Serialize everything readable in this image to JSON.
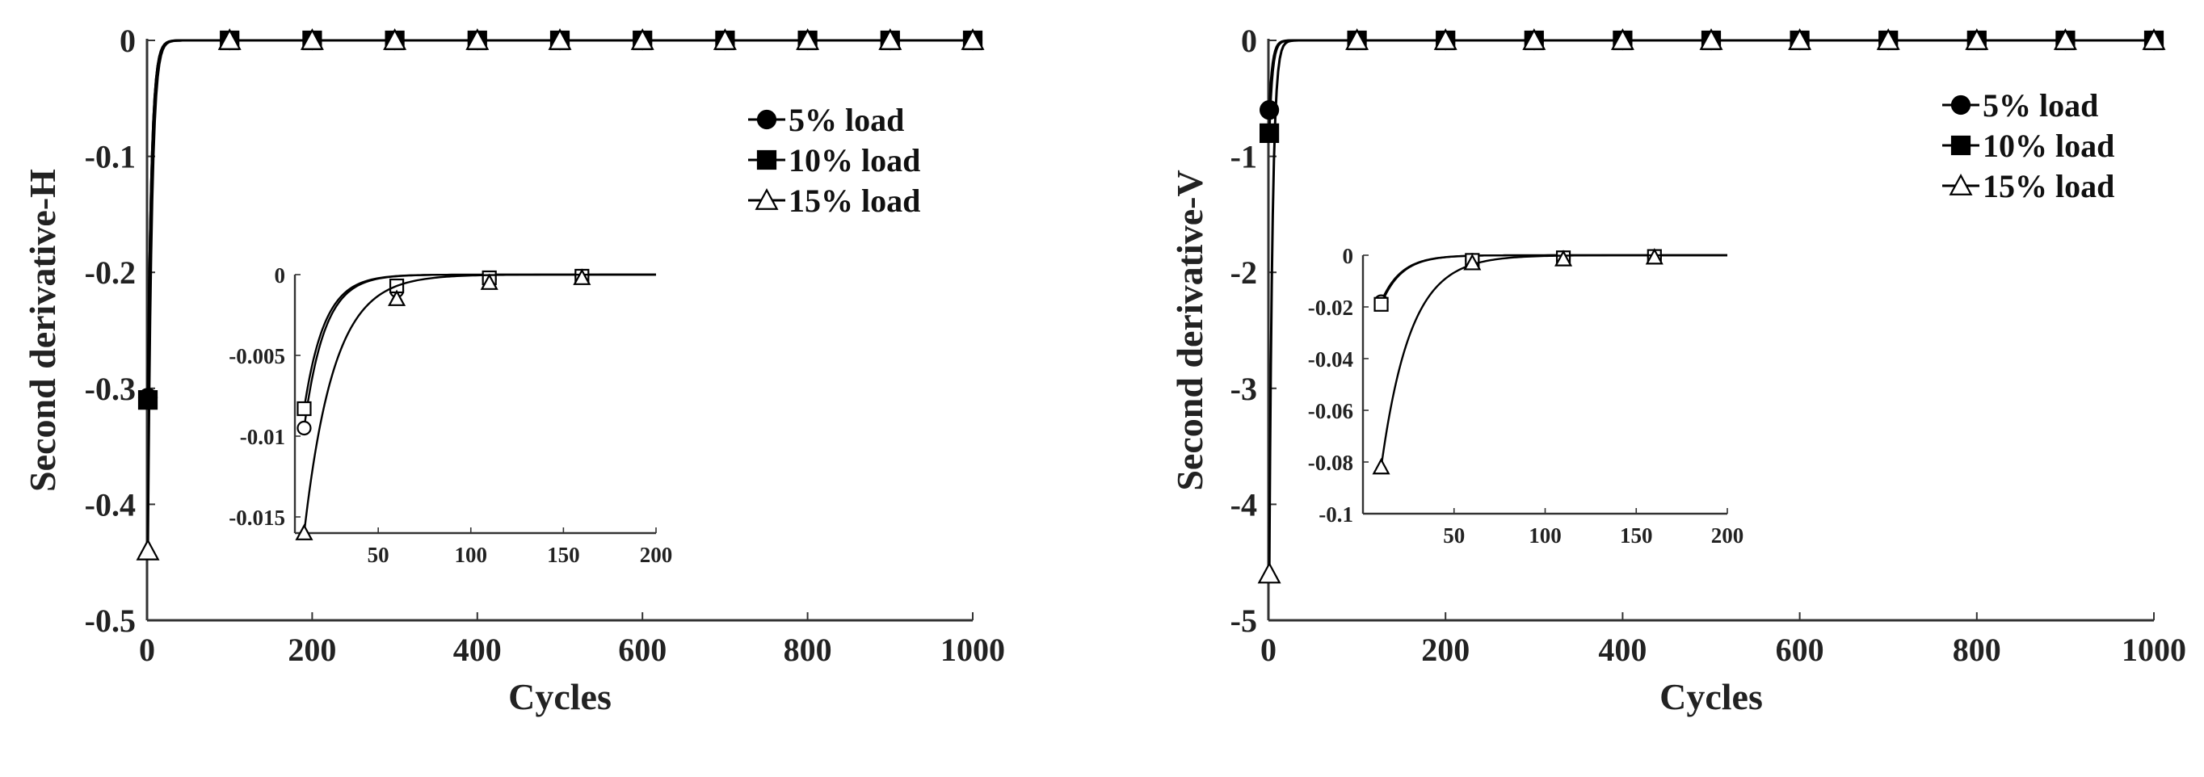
{
  "chart_data": [
    {
      "type": "line",
      "ylabel": "Second derivative-H",
      "xlabel": "Cycles",
      "xlim": [
        0,
        1000
      ],
      "ylim": [
        -0.5,
        0
      ],
      "xticks": [
        0,
        200,
        400,
        600,
        800,
        1000
      ],
      "yticks": [
        0,
        -0.1,
        -0.2,
        -0.3,
        -0.4,
        -0.5
      ],
      "legend_position": "top-right",
      "series": [
        {
          "name": "5% load",
          "marker": "circle-filled",
          "x": [
            1,
            100,
            200,
            300,
            400,
            500,
            600,
            700,
            800,
            900,
            1000
          ],
          "y": [
            -0.308,
            0,
            0,
            0,
            0,
            0,
            0,
            0,
            0,
            0,
            0
          ]
        },
        {
          "name": "10% load",
          "marker": "square-filled",
          "x": [
            1,
            100,
            200,
            300,
            400,
            500,
            600,
            700,
            800,
            900,
            1000
          ],
          "y": [
            -0.31,
            0,
            0,
            0,
            0,
            0,
            0,
            0,
            0,
            0,
            0
          ]
        },
        {
          "name": "15% load",
          "marker": "triangle-open",
          "x": [
            1,
            100,
            200,
            300,
            400,
            500,
            600,
            700,
            800,
            900,
            1000
          ],
          "y": [
            -0.44,
            0,
            0,
            0,
            0,
            0,
            0,
            0,
            0,
            0,
            0
          ]
        }
      ],
      "inset": {
        "xlim": [
          5,
          200
        ],
        "ylim": [
          -0.016,
          0
        ],
        "xticks": [
          50,
          100,
          150,
          200
        ],
        "yticks": [
          0,
          -0.005,
          -0.01,
          -0.015
        ],
        "series": [
          {
            "name": "5% load",
            "marker": "circle-open",
            "x": [
              10,
              60,
              110,
              160
            ],
            "y": [
              -0.0095,
              -0.001,
              -0.0003,
              -0.0001
            ]
          },
          {
            "name": "10% load",
            "marker": "square-open",
            "x": [
              10,
              60,
              110,
              160
            ],
            "y": [
              -0.0083,
              -0.0007,
              -0.0002,
              -0.0001
            ]
          },
          {
            "name": "15% load",
            "marker": "triangle-open",
            "x": [
              10,
              60,
              110,
              160
            ],
            "y": [
              -0.016,
              -0.0015,
              -0.0005,
              -0.0002
            ]
          }
        ]
      }
    },
    {
      "type": "line",
      "ylabel": "Second derivative-V",
      "xlabel": "Cycles",
      "xlim": [
        0,
        1000
      ],
      "ylim": [
        -5,
        0
      ],
      "xticks": [
        0,
        200,
        400,
        600,
        800,
        1000
      ],
      "yticks": [
        0,
        -1,
        -2,
        -3,
        -4,
        -5
      ],
      "legend_position": "top-right",
      "series": [
        {
          "name": "5% load",
          "marker": "circle-filled",
          "x": [
            1,
            100,
            200,
            300,
            400,
            500,
            600,
            700,
            800,
            900,
            1000
          ],
          "y": [
            -0.6,
            0,
            0,
            0,
            0,
            0,
            0,
            0,
            0,
            0,
            0
          ]
        },
        {
          "name": "10% load",
          "marker": "square-filled",
          "x": [
            1,
            100,
            200,
            300,
            400,
            500,
            600,
            700,
            800,
            900,
            1000
          ],
          "y": [
            -0.8,
            0,
            0,
            0,
            0,
            0,
            0,
            0,
            0,
            0,
            0
          ]
        },
        {
          "name": "15% load",
          "marker": "triangle-open",
          "x": [
            1,
            100,
            200,
            300,
            400,
            500,
            600,
            700,
            800,
            900,
            1000
          ],
          "y": [
            -4.6,
            0,
            0,
            0,
            0,
            0,
            0,
            0,
            0,
            0,
            0
          ]
        }
      ],
      "inset": {
        "xlim": [
          0,
          200
        ],
        "ylim": [
          -0.1,
          0
        ],
        "xticks": [
          50,
          100,
          150,
          200
        ],
        "yticks": [
          0,
          -0.02,
          -0.04,
          -0.06,
          -0.08,
          -0.1
        ],
        "series": [
          {
            "name": "5% load",
            "marker": "circle-open",
            "x": [
              10,
              60,
              110,
              160
            ],
            "y": [
              -0.018,
              -0.002,
              -0.001,
              -0.0005
            ]
          },
          {
            "name": "10% load",
            "marker": "square-open",
            "x": [
              10,
              60,
              110,
              160
            ],
            "y": [
              -0.019,
              -0.002,
              -0.001,
              -0.0005
            ]
          },
          {
            "name": "15% load",
            "marker": "triangle-open",
            "x": [
              10,
              60,
              110,
              160
            ],
            "y": [
              -0.082,
              -0.003,
              -0.0015,
              -0.0008
            ]
          }
        ]
      }
    }
  ]
}
